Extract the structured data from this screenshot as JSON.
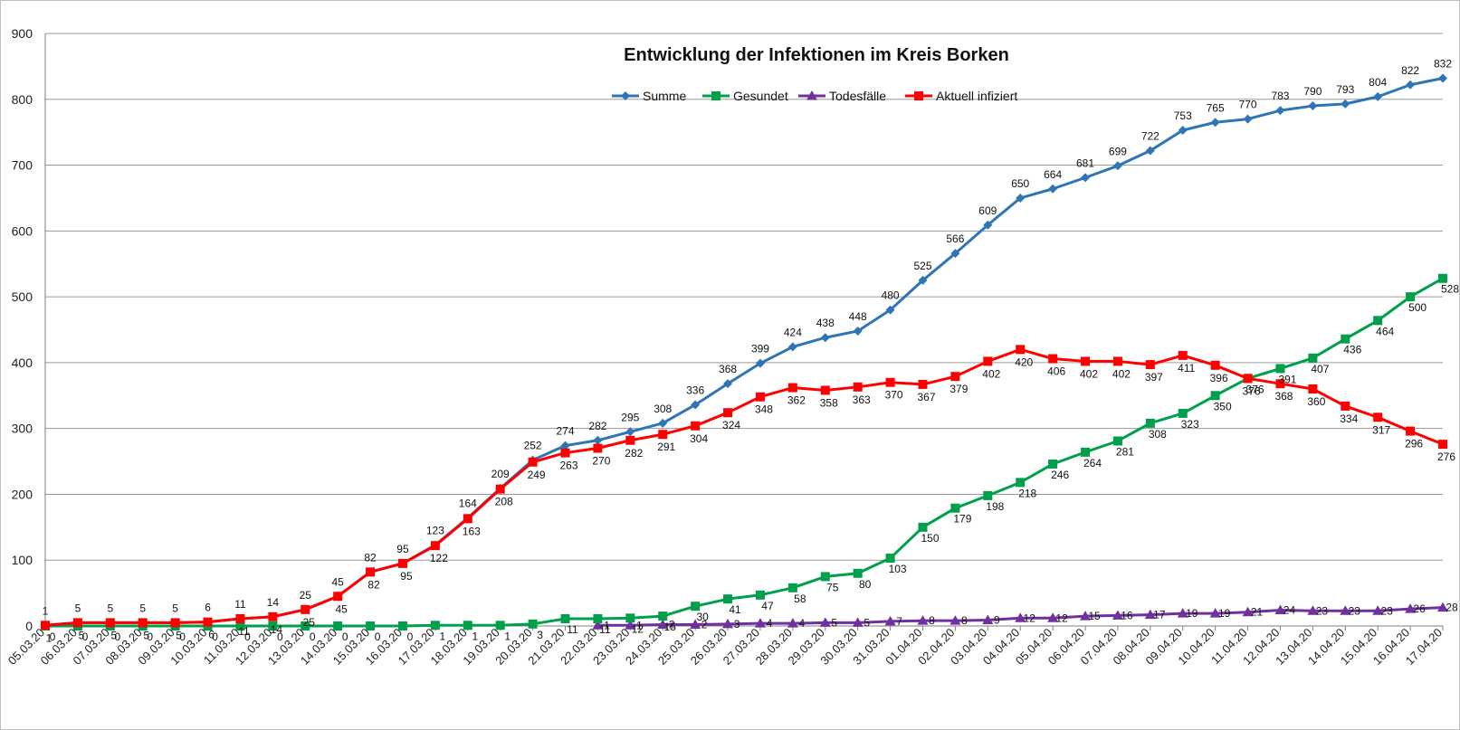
{
  "chart_data": {
    "type": "line",
    "title": "Entwicklung der Infektionen im Kreis Borken",
    "xlabel": "",
    "ylabel": "",
    "ylim": [
      0,
      900
    ],
    "yticks": [
      0,
      100,
      200,
      300,
      400,
      500,
      600,
      700,
      800,
      900
    ],
    "grid": true,
    "legend_position": "top-center",
    "categories": [
      "05.03.20",
      "06.03.20",
      "07.03.20",
      "08.03.20",
      "09.03.20",
      "10.03.20",
      "11.03.20",
      "12.03.20",
      "13.03.20",
      "14.03.20",
      "15.03.20",
      "16.03.20",
      "17.03.20",
      "18.03.20",
      "19.03.20",
      "20.03.20",
      "21.03.20",
      "22.03.20",
      "23.03.20",
      "24.03.20",
      "25.03.20",
      "26.03.20",
      "27.03.20",
      "28.03.20",
      "29.03.20",
      "30.03.20",
      "31.03.20",
      "01.04.20",
      "02.04.20",
      "03.04.20",
      "04.04.20",
      "05.04.20",
      "06.04.20",
      "07.04.20",
      "08.04.20",
      "09.04.20",
      "10.04.20",
      "11.04.20",
      "12.04.20",
      "13.04.20",
      "14.04.20",
      "15.04.20",
      "16.04.20",
      "17.04.20"
    ],
    "series": [
      {
        "name": "Summe",
        "color": "#2e75b6",
        "marker": "diamond",
        "values": [
          1,
          5,
          5,
          5,
          5,
          6,
          11,
          14,
          25,
          45,
          82,
          95,
          123,
          164,
          209,
          252,
          274,
          282,
          295,
          308,
          336,
          368,
          399,
          424,
          438,
          448,
          480,
          525,
          566,
          609,
          650,
          664,
          681,
          699,
          722,
          753,
          765,
          770,
          783,
          790,
          793,
          804,
          822,
          832
        ]
      },
      {
        "name": "Gesundet",
        "color": "#00a04a",
        "marker": "square",
        "values": [
          0,
          0,
          0,
          0,
          0,
          0,
          0,
          0,
          0,
          0,
          0,
          0,
          1,
          1,
          1,
          3,
          11,
          11,
          12,
          15,
          30,
          41,
          47,
          58,
          75,
          80,
          103,
          150,
          179,
          198,
          218,
          246,
          264,
          281,
          308,
          323,
          350,
          376,
          391,
          407,
          436,
          464,
          500,
          528
        ]
      },
      {
        "name": "Todesfälle",
        "color": "#7030a0",
        "marker": "triangle",
        "values": [
          null,
          null,
          null,
          null,
          null,
          null,
          null,
          null,
          null,
          null,
          null,
          null,
          null,
          null,
          null,
          null,
          null,
          1,
          1,
          2,
          2,
          3,
          4,
          4,
          5,
          5,
          7,
          8,
          8,
          9,
          12,
          12,
          15,
          16,
          17,
          19,
          19,
          21,
          24,
          23,
          23,
          23,
          26,
          28
        ]
      },
      {
        "name": "Aktuell infiziert",
        "color": "#ff0000",
        "marker": "square",
        "values": [
          1,
          5,
          5,
          5,
          5,
          6,
          11,
          14,
          25,
          45,
          82,
          95,
          122,
          163,
          208,
          249,
          263,
          270,
          282,
          291,
          304,
          324,
          348,
          362,
          358,
          363,
          370,
          367,
          379,
          402,
          420,
          406,
          402,
          402,
          397,
          411,
          396,
          376,
          368,
          360,
          334,
          317,
          296,
          276
        ]
      }
    ]
  }
}
